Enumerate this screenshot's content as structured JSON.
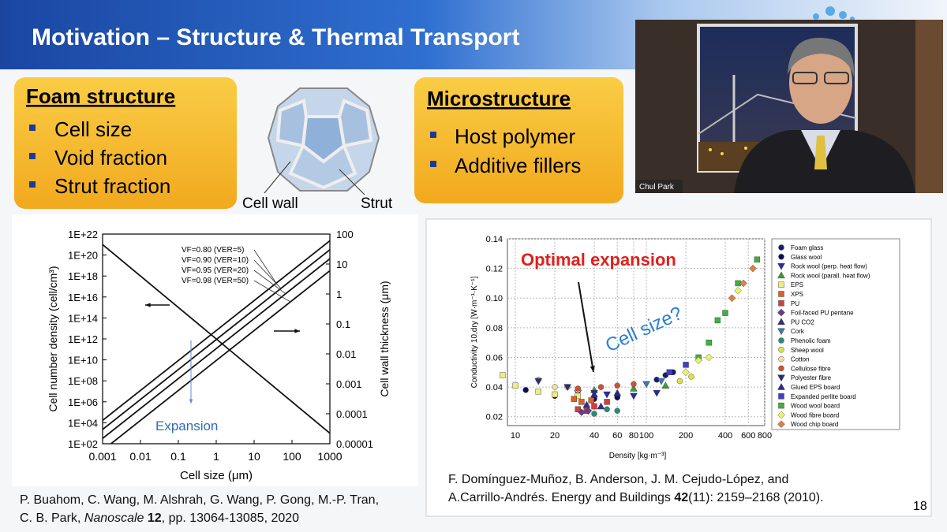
{
  "header": {
    "title": "Motivation – Structure & Thermal Transport"
  },
  "video": {
    "name": "Chul Park"
  },
  "box_foam": {
    "heading": "Foam structure",
    "bullets": [
      "Cell size",
      "Void fraction",
      "Strut fraction"
    ]
  },
  "diagram": {
    "labels": [
      "Cell wall",
      "Strut"
    ]
  },
  "box_micro": {
    "heading": "Microstructure",
    "bullets": [
      "Host polymer",
      "Additive fillers"
    ]
  },
  "chart_data": [
    {
      "type": "line",
      "xlabel": "Cell size (μm)",
      "ylabel": "Cell number density (cell/cm³)",
      "y2label": "Cell wall thickness (μm)",
      "xscale": "log",
      "yscale": "log",
      "y2scale": "log",
      "xlim": [
        0.001,
        1000
      ],
      "ylim": [
        100,
        1e+22
      ],
      "y2lim": [
        1e-05,
        100
      ],
      "xticks": [
        0.001,
        0.01,
        0.1,
        1,
        10,
        100,
        1000
      ],
      "yticks": [
        {
          "value": 100,
          "label": "1E+02"
        },
        {
          "value": 10000.0,
          "label": "1E+04"
        },
        {
          "value": 1000000.0,
          "label": "1E+06"
        },
        {
          "value": 100000000.0,
          "label": "1E+08"
        },
        {
          "value": 10000000000.0,
          "label": "1E+10"
        },
        {
          "value": 1000000000000.0,
          "label": "1E+12"
        },
        {
          "value": 100000000000000.0,
          "label": "1E+14"
        },
        {
          "value": 1e+16,
          "label": "1E+16"
        },
        {
          "value": 1e+18,
          "label": "1E+18"
        },
        {
          "value": 1e+20,
          "label": "1E+20"
        },
        {
          "value": 1e+22,
          "label": "1E+22"
        }
      ],
      "y2ticks": [
        1e-05,
        0.0001,
        0.001,
        0.01,
        0.1,
        1,
        10,
        100
      ],
      "series": [
        {
          "color": "#111111",
          "x": [
            0.001,
            1000
          ],
          "values": [
            1e+21,
            1000
          ]
        },
        {
          "name": "VF=0.80 (VER=5)",
          "axis": "y2",
          "color": "#111111",
          "x": [
            0.001,
            1000
          ],
          "values": [
            6e-05,
            60
          ]
        },
        {
          "name": "VF=0.90 (VER=10)",
          "axis": "y2",
          "color": "#111111",
          "x": [
            0.001,
            1000
          ],
          "values": [
            3e-05,
            30
          ]
        },
        {
          "name": "VF=0.95 (VER=20)",
          "axis": "y2",
          "color": "#111111",
          "x": [
            0.001,
            1000
          ],
          "values": [
            1.5e-05,
            15
          ]
        },
        {
          "name": "VF=0.98 (VER=50)",
          "axis": "y2",
          "color": "#111111",
          "x": [
            0.001,
            1000
          ],
          "values": [
            6e-06,
            6
          ]
        }
      ],
      "annotations": [
        "Expansion"
      ]
    },
    {
      "type": "scatter",
      "xlabel": "Density [kg·m⁻³]",
      "ylabel": "Conductivity 10,dry [W·m⁻¹·K⁻¹]",
      "xscale": "log",
      "xlim": [
        8.7,
        800
      ],
      "ylim": [
        0.014,
        0.14
      ],
      "xticks": [
        10,
        20,
        40,
        60,
        80,
        100,
        200,
        400,
        600,
        800
      ],
      "yticks": [
        0.02,
        0.04,
        0.06,
        0.08,
        {
          "value": 0.1,
          "label": "0.10"
        },
        0.12,
        0.14
      ],
      "grid": true,
      "legend": "right",
      "annotations": [
        "Optimal expansion",
        "Cell size?"
      ],
      "series": [
        {
          "name": "Foam glass",
          "color": "#1a1a7a",
          "marker": "circle",
          "x": [
            120,
            140,
            160
          ],
          "values": [
            0.045,
            0.048,
            0.05
          ]
        },
        {
          "name": "Glass wool",
          "color": "#0d0d5c",
          "marker": "circle",
          "x": [
            12,
            20,
            40,
            60
          ],
          "values": [
            0.038,
            0.034,
            0.032,
            0.033
          ]
        },
        {
          "name": "Rock wool (perp. heat flow)",
          "color": "#2a2aa0",
          "marker": "triangle-down",
          "x": [
            30,
            50,
            80,
            120
          ],
          "values": [
            0.036,
            0.035,
            0.034,
            0.036
          ]
        },
        {
          "name": "Rock wool (parall. heat flow)",
          "color": "#3a9a3a",
          "marker": "triangle",
          "x": [
            40,
            80,
            140
          ],
          "values": [
            0.038,
            0.039,
            0.041
          ]
        },
        {
          "name": "EPS",
          "color": "#eeee80",
          "marker": "square",
          "x": [
            8,
            10,
            15,
            20,
            30
          ],
          "values": [
            0.048,
            0.041,
            0.037,
            0.035,
            0.034
          ]
        },
        {
          "name": "XPS",
          "color": "#e06020",
          "marker": "square",
          "x": [
            28,
            32,
            38
          ],
          "values": [
            0.032,
            0.03,
            0.031
          ]
        },
        {
          "name": "PU",
          "color": "#d04040",
          "marker": "square",
          "x": [
            30,
            35,
            40,
            50
          ],
          "values": [
            0.025,
            0.024,
            0.027,
            0.03
          ]
        },
        {
          "name": "Foil-faced PU pentane",
          "color": "#6a3a8a",
          "marker": "diamond",
          "x": [
            32,
            36
          ],
          "values": [
            0.023,
            0.024
          ]
        },
        {
          "name": "PU CO2",
          "color": "#30308a",
          "marker": "triangle",
          "x": [
            35,
            45
          ],
          "values": [
            0.028,
            0.027
          ]
        },
        {
          "name": "Cork",
          "color": "#3a7ab0",
          "marker": "triangle-down",
          "x": [
            100,
            130
          ],
          "values": [
            0.042,
            0.044
          ]
        },
        {
          "name": "Phenolic foam",
          "color": "#2a8a7a",
          "marker": "circle",
          "x": [
            40,
            50,
            60
          ],
          "values": [
            0.022,
            0.025,
            0.024
          ]
        },
        {
          "name": "Sheep wool",
          "color": "#e0e040",
          "marker": "circle",
          "x": [
            15,
            25,
            180,
            220
          ],
          "values": [
            0.045,
            0.04,
            0.044,
            0.047
          ]
        },
        {
          "name": "Cotton",
          "color": "#f0e0a0",
          "marker": "circle",
          "x": [
            20,
            30
          ],
          "values": [
            0.04,
            0.038
          ]
        },
        {
          "name": "Cellulose fibre",
          "color": "#d05030",
          "marker": "circle",
          "x": [
            30,
            45,
            60,
            80
          ],
          "values": [
            0.039,
            0.04,
            0.041,
            0.042
          ]
        },
        {
          "name": "Polyester fibre",
          "color": "#2a2a8a",
          "marker": "triangle-down",
          "x": [
            15,
            25,
            40
          ],
          "values": [
            0.044,
            0.04,
            0.036
          ]
        },
        {
          "name": "Glued EPS board",
          "color": "#2a2a8a",
          "marker": "triangle",
          "x": [
            40,
            60
          ],
          "values": [
            0.035,
            0.036
          ]
        },
        {
          "name": "Expanded perlite board",
          "color": "#4040c0",
          "marker": "square",
          "x": [
            150,
            200
          ],
          "values": [
            0.05,
            0.055
          ]
        },
        {
          "name": "Wood wool board",
          "color": "#40b040",
          "marker": "square",
          "x": [
            250,
            300,
            350,
            400,
            500,
            700
          ],
          "values": [
            0.06,
            0.07,
            0.085,
            0.09,
            0.11,
            0.126
          ]
        },
        {
          "name": "Wood fibre board",
          "color": "#f0f070",
          "marker": "diamond",
          "x": [
            200,
            250,
            300,
            500
          ],
          "values": [
            0.05,
            0.058,
            0.06,
            0.105
          ]
        },
        {
          "name": "Wood chip board",
          "color": "#e08040",
          "marker": "diamond",
          "x": [
            450,
            550,
            650
          ],
          "values": [
            0.1,
            0.11,
            0.12
          ]
        }
      ]
    }
  ],
  "citation_left": {
    "line1": "P. Buahom, C. Wang, M. Alshrah, G. Wang, P. Gong, M.-P. Tran,",
    "authors_end": "C. B. Park,",
    "journal": "Nanoscale",
    "volume": "12",
    "rest": ", pp. 13064-13085, 2020"
  },
  "citation_right": {
    "line1": "F. Domínguez-Muñoz, B. Anderson, J. M. Cejudo-López, and",
    "line2": "A.Carrillo-Andrés. Energy and Buildings",
    "volume": "42",
    "rest": "(11): 2159–2168 (2010)."
  },
  "page_number": "18"
}
